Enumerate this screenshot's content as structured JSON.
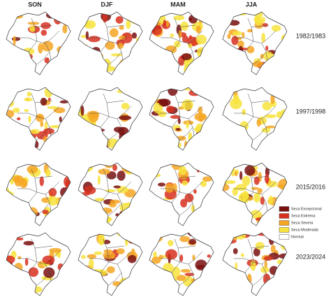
{
  "columns": [
    "SON",
    "DJF",
    "MAM",
    "JJA"
  ],
  "rows": [
    "1982/1983",
    "1997/1998",
    "2015/2016",
    "2023/2024"
  ],
  "legend": [
    {
      "label": "Seca Excepcional",
      "color": "#7a0f0f"
    },
    {
      "label": "Seca Extrema",
      "color": "#d7301f"
    },
    {
      "label": "Seca Severa",
      "color": "#f5a623"
    },
    {
      "label": "Seca Moderada",
      "color": "#f7e33c"
    },
    {
      "label": "Normal",
      "color": "#ffffff"
    }
  ]
}
